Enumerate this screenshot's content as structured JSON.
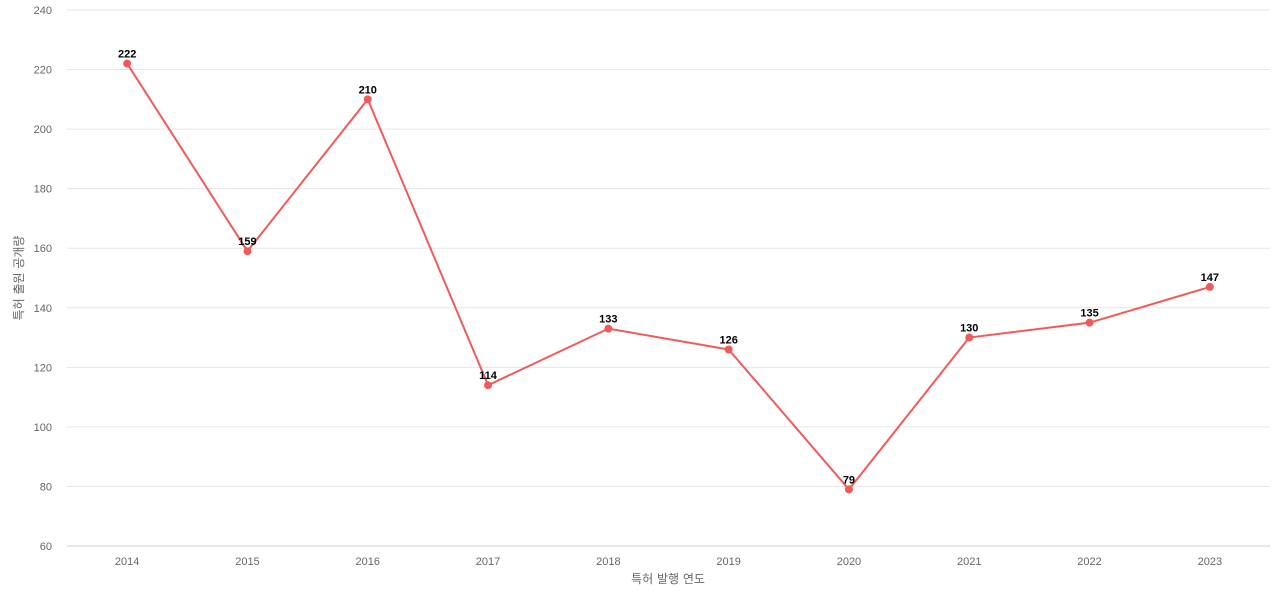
{
  "chart_data": {
    "type": "line",
    "title": "",
    "xlabel": "특허 발행 연도",
    "ylabel": "특허 출원 공개량",
    "categories": [
      "2014",
      "2015",
      "2016",
      "2017",
      "2018",
      "2019",
      "2020",
      "2021",
      "2022",
      "2023"
    ],
    "series": [
      {
        "values": [
          222,
          159,
          210,
          114,
          133,
          126,
          79,
          130,
          135,
          147
        ],
        "color": "#ef5a5a"
      }
    ],
    "ylim": [
      60,
      240
    ],
    "yticks": [
      60,
      80,
      100,
      120,
      140,
      160,
      180,
      200,
      220,
      240
    ],
    "grid": true,
    "legend": "none"
  }
}
